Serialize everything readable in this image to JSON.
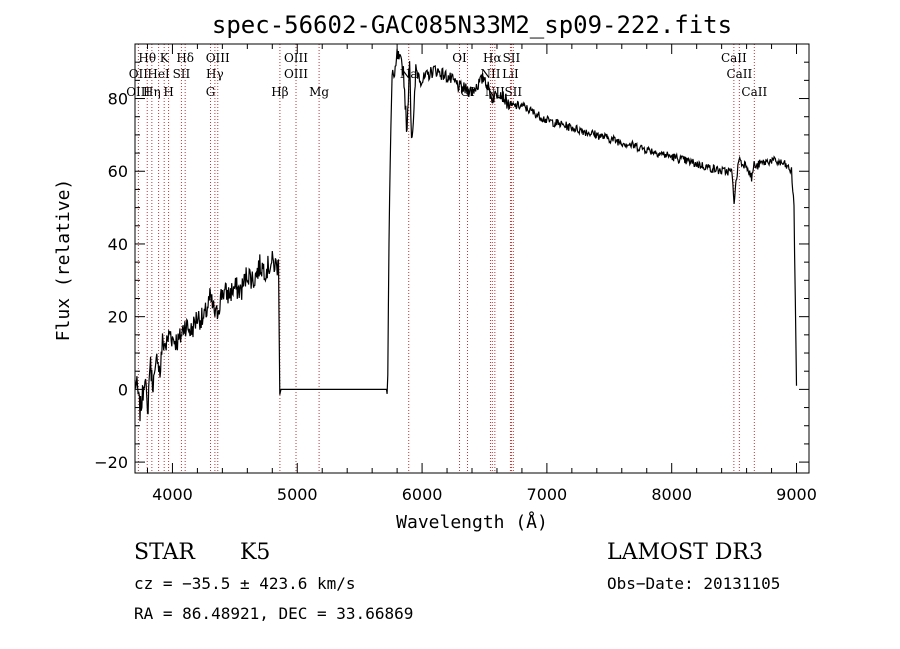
{
  "chart_data": {
    "type": "line",
    "title": "spec-56602-GAC085N33M2_sp09-222.fits",
    "xlabel": "Wavelength (Å)",
    "ylabel": "Flux (relative)",
    "xlim": [
      3700,
      9100
    ],
    "ylim": [
      -23,
      95
    ],
    "xticks": [
      4000,
      5000,
      6000,
      7000,
      8000,
      9000
    ],
    "yticks": [
      -20,
      0,
      20,
      40,
      60,
      80
    ],
    "xtick_labels": [
      "4000",
      "5000",
      "6000",
      "7000",
      "8000",
      "9000"
    ],
    "ytick_labels": [
      "−20",
      "0",
      "20",
      "40",
      "60",
      "80"
    ],
    "grid": false,
    "series": [
      {
        "name": "spectrum",
        "x": [
          3700,
          3720,
          3740,
          3760,
          3780,
          3800,
          3820,
          3840,
          3860,
          3880,
          3900,
          3920,
          3950,
          3980,
          4000,
          4050,
          4100,
          4150,
          4200,
          4250,
          4300,
          4350,
          4400,
          4450,
          4500,
          4550,
          4600,
          4650,
          4700,
          4750,
          4800,
          4830,
          4850,
          4860,
          4870,
          5000,
          5200,
          5400,
          5600,
          5720,
          5725,
          5735,
          5745,
          5760,
          5780,
          5800,
          5850,
          5880,
          5900,
          5915,
          5930,
          5950,
          6000,
          6100,
          6200,
          6280,
          6300,
          6400,
          6500,
          6560,
          6620,
          6700,
          6800,
          7000,
          7200,
          7400,
          7600,
          7800,
          8000,
          8200,
          8400,
          8480,
          8500,
          8540,
          8560,
          8600,
          8640,
          8660,
          8680,
          8700,
          8800,
          8900,
          8960,
          8980,
          9000
        ],
        "values": [
          2,
          0,
          -6,
          -2,
          5,
          -8,
          8,
          2,
          3,
          10,
          4,
          13,
          12,
          16,
          14,
          13,
          18,
          16,
          20,
          19,
          25,
          20,
          27,
          26,
          28,
          27,
          32,
          30,
          34,
          33,
          35,
          34,
          34,
          1,
          0,
          0,
          0,
          0,
          0,
          0,
          5,
          40,
          62,
          88,
          85,
          92,
          88,
          70,
          92,
          70,
          72,
          88,
          85,
          88,
          86,
          84,
          83,
          82,
          86,
          80,
          82,
          78,
          78,
          74,
          72,
          70,
          68,
          66,
          64,
          62,
          60,
          60,
          52,
          64,
          62,
          62,
          58,
          62,
          61,
          62,
          63,
          62,
          60,
          50,
          1
        ]
      }
    ],
    "line_labels": [
      {
        "text": "Hθ",
        "wavelength": 3798,
        "row": 1
      },
      {
        "text": "OII",
        "wavelength": 3727,
        "row": 2
      },
      {
        "text": "OIII",
        "wavelength": 3726,
        "row": 3
      },
      {
        "text": "Hη",
        "wavelength": 3835,
        "row": 3
      },
      {
        "text": "HeI",
        "wavelength": 3889,
        "row": 2
      },
      {
        "text": "K",
        "wavelength": 3934,
        "row": 1
      },
      {
        "text": "H",
        "wavelength": 3969,
        "row": 3
      },
      {
        "text": "SII",
        "wavelength": 4072,
        "row": 2
      },
      {
        "text": "Hδ",
        "wavelength": 4102,
        "row": 1
      },
      {
        "text": "OIII",
        "wavelength": 4363,
        "row": 1
      },
      {
        "text": "Hγ",
        "wavelength": 4340,
        "row": 2
      },
      {
        "text": "G",
        "wavelength": 4305,
        "row": 3
      },
      {
        "text": "Hβ",
        "wavelength": 4861,
        "row": 3
      },
      {
        "text": "OIII",
        "wavelength": 4990,
        "row": 1
      },
      {
        "text": "OIII",
        "wavelength": 4990,
        "row": 2
      },
      {
        "text": "Mg",
        "wavelength": 5175,
        "row": 3
      },
      {
        "text": "Na",
        "wavelength": 5893,
        "row": 2
      },
      {
        "text": "OI",
        "wavelength": 6300,
        "row": 1
      },
      {
        "text": "OI",
        "wavelength": 6364,
        "row": 3
      },
      {
        "text": "Hα",
        "wavelength": 6563,
        "row": 1
      },
      {
        "text": "NII",
        "wavelength": 6548,
        "row": 2
      },
      {
        "text": "NII",
        "wavelength": 6583,
        "row": 3
      },
      {
        "text": "SII",
        "wavelength": 6716,
        "row": 1
      },
      {
        "text": "LiI",
        "wavelength": 6708,
        "row": 2
      },
      {
        "text": "SII",
        "wavelength": 6731,
        "row": 3
      },
      {
        "text": "CaII",
        "wavelength": 8498,
        "row": 1
      },
      {
        "text": "CaII",
        "wavelength": 8542,
        "row": 2
      },
      {
        "text": "CaII",
        "wavelength": 8662,
        "row": 3
      }
    ],
    "line_markers": [
      3727,
      3798,
      3835,
      3889,
      3934,
      3969,
      4072,
      4102,
      4305,
      4340,
      4363,
      4861,
      4990,
      5175,
      5893,
      6300,
      6364,
      6548,
      6563,
      6583,
      6708,
      6716,
      6731,
      8498,
      8542,
      8662
    ]
  },
  "info": {
    "class": "STAR",
    "subclass": "K5",
    "survey": "LAMOST DR3",
    "cz": "cz = −35.5 ± 423.6 km/s",
    "obs_date": "Obs−Date: 20131105",
    "coords": "RA =  86.48921, DEC =  33.66869"
  },
  "colors": {
    "line": "#000000",
    "marker": "#c83232",
    "axis": "#000000"
  }
}
